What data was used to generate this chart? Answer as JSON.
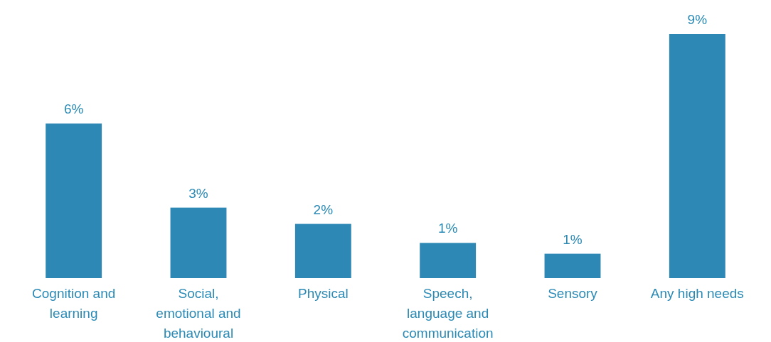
{
  "chart_data": {
    "type": "bar",
    "categories": [
      "Cognition and learning",
      "Social, emotional and behavioural",
      "Physical",
      "Speech, language and communication",
      "Sensory",
      "Any high needs"
    ],
    "values": [
      5.7,
      2.6,
      2.0,
      1.3,
      0.9,
      9.0
    ],
    "value_labels": [
      "6%",
      "3%",
      "2%",
      "1%",
      "1%",
      "9%"
    ],
    "color": "#2e88b6"
  }
}
